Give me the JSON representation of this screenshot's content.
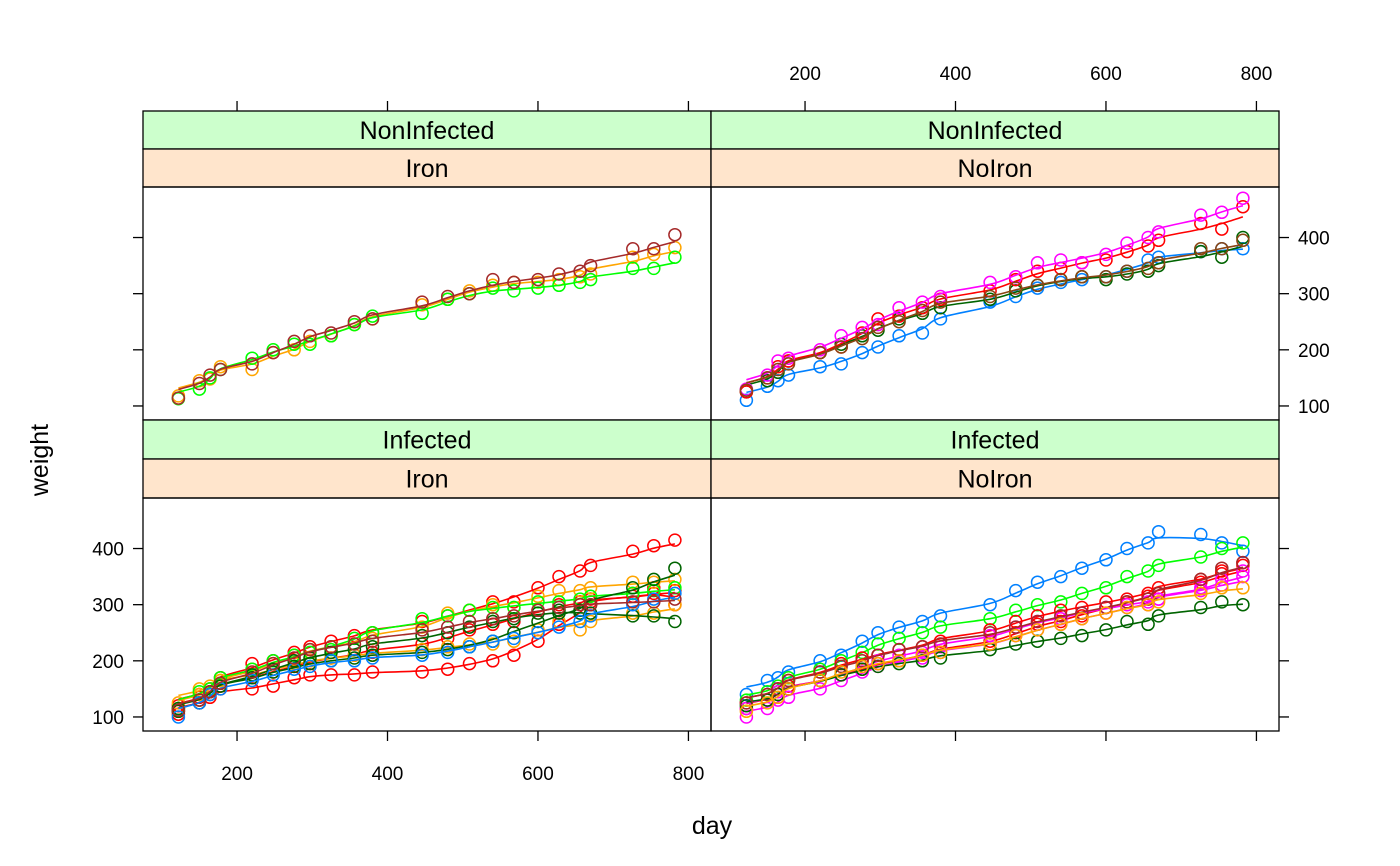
{
  "chart_data": {
    "type": "scatter",
    "layout": "lattice 2x2 with loess-smoothed lines per animal",
    "xlabel": "day",
    "ylabel": "weight",
    "xlim": [
      75,
      830
    ],
    "ylim": [
      75,
      490
    ],
    "x_ticks": [
      200,
      400,
      600,
      800
    ],
    "y_ticks": [
      100,
      200,
      300,
      400
    ],
    "x_tick_labels": [
      "200",
      "400",
      "600",
      "800"
    ],
    "y_tick_labels": [
      "100",
      "200",
      "300",
      "400"
    ],
    "days": [
      122,
      150,
      164,
      178,
      220,
      248,
      276,
      297,
      325,
      356,
      380,
      446,
      480,
      509,
      540,
      568,
      600,
      628,
      656,
      670,
      726,
      754,
      782
    ],
    "panels": [
      {
        "id": "noninfected-iron",
        "strip_top": "NonInfected",
        "strip_bottom": "Iron",
        "series": [
          {
            "color": "#FFA500",
            "values": [
              118,
              145,
              148,
              170,
              165,
              195,
              200,
              215,
              225,
              245,
              255,
              280,
              290,
              305,
              315,
              320,
              320,
              325,
              330,
              335,
              365,
              370,
              382
            ]
          },
          {
            "color": "#00FF00",
            "values": [
              113,
              130,
              150,
              165,
              185,
              200,
              210,
              210,
              225,
              245,
              260,
              265,
              290,
              300,
              310,
              305,
              310,
              315,
              320,
              325,
              345,
              345,
              365
            ]
          },
          {
            "color": "#A52A2A",
            "values": [
              114,
              140,
              155,
              165,
              175,
              195,
              215,
              225,
              230,
              250,
              255,
              285,
              295,
              300,
              325,
              320,
              325,
              335,
              340,
              350,
              380,
              380,
              405
            ]
          }
        ]
      },
      {
        "id": "noninfected-noiron",
        "strip_top": "NonInfected",
        "strip_bottom": "NoIron",
        "series": [
          {
            "color": "#0080FF",
            "values": [
              110,
              135,
              145,
              155,
              170,
              175,
              195,
              205,
              225,
              230,
              255,
              285,
              295,
              310,
              320,
              325,
              330,
              340,
              360,
              365,
              375,
              380,
              380
            ]
          },
          {
            "color": "#006400",
            "values": [
              125,
              145,
              160,
              180,
              195,
              210,
              225,
              235,
              255,
              265,
              275,
              290,
              305,
              315,
              325,
              330,
              325,
              335,
              340,
              350,
              375,
              365,
              400
            ]
          },
          {
            "color": "#FF0000",
            "values": [
              125,
              150,
              170,
              180,
              195,
              205,
              230,
              255,
              260,
              275,
              290,
              305,
              325,
              340,
              345,
              355,
              360,
              375,
              385,
              395,
              425,
              415,
              455
            ]
          },
          {
            "color": "#FF00FF",
            "values": [
              130,
              155,
              180,
              185,
              200,
              225,
              240,
              245,
              275,
              285,
              295,
              320,
              330,
              355,
              360,
              355,
              370,
              390,
              400,
              410,
              440,
              445,
              470
            ]
          },
          {
            "color": "#8B4513",
            "values": [
              128,
              150,
              165,
              175,
              195,
              205,
              220,
              240,
              250,
              270,
              285,
              295,
              310,
              315,
              325,
              330,
              330,
              340,
              345,
              355,
              380,
              380,
              395
            ]
          }
        ]
      },
      {
        "id": "infected-iron",
        "strip_top": "Infected",
        "strip_bottom": "Iron",
        "series": [
          {
            "color": "#FF0000",
            "values": [
              120,
              140,
              150,
              170,
              195,
              200,
              215,
              225,
              235,
              245,
              250,
              270,
              280,
              290,
              305,
              305,
              330,
              350,
              360,
              370,
              395,
              405,
              415
            ]
          },
          {
            "color": "#FF0000",
            "values": [
              105,
              125,
              135,
              150,
              150,
              155,
              170,
              175,
              175,
              175,
              180,
              180,
              185,
              195,
              200,
              210,
              235,
              265,
              290,
              310,
              320,
              330,
              300
            ]
          },
          {
            "color": "#FF0000",
            "values": [
              110,
              135,
              145,
              155,
              175,
              180,
              190,
              200,
              205,
              210,
              215,
              230,
              240,
              255,
              265,
              270,
              290,
              300,
              305,
              305,
              315,
              320,
              325
            ]
          },
          {
            "color": "#FFA500",
            "values": [
              125,
              150,
              155,
              165,
              175,
              185,
              195,
              200,
              205,
              210,
              210,
              220,
              225,
              230,
              230,
              235,
              255,
              270,
              255,
              270,
              285,
              285,
              300
            ]
          },
          {
            "color": "#FFA500",
            "values": [
              115,
              140,
              150,
              165,
              185,
              195,
              210,
              220,
              225,
              230,
              240,
              260,
              285,
              290,
              300,
              295,
              315,
              325,
              325,
              330,
              340,
              340,
              345
            ]
          },
          {
            "color": "#00FF00",
            "values": [
              115,
              145,
              150,
              170,
              185,
              200,
              210,
              215,
              220,
              240,
              250,
              275,
              280,
              290,
              295,
              295,
              305,
              305,
              310,
              315,
              320,
              325,
              330
            ]
          },
          {
            "color": "#006400",
            "values": [
              110,
              130,
              140,
              160,
              170,
              180,
              190,
              195,
              200,
              205,
              210,
              215,
              220,
              225,
              235,
              250,
              270,
              285,
              290,
              300,
              330,
              345,
              365
            ]
          },
          {
            "color": "#006400",
            "values": [
              115,
              125,
              145,
              155,
              175,
              185,
              200,
              205,
              215,
              220,
              225,
              245,
              250,
              260,
              270,
              275,
              285,
              290,
              285,
              285,
              280,
              280,
              270
            ]
          },
          {
            "color": "#0080FF",
            "values": [
              100,
              125,
              140,
              150,
              165,
              175,
              185,
              190,
              200,
              200,
              205,
              210,
              215,
              225,
              235,
              240,
              250,
              260,
              270,
              280,
              300,
              310,
              320
            ]
          },
          {
            "color": "#A52A2A",
            "values": [
              112,
              130,
              145,
              160,
              180,
              195,
              205,
              220,
              225,
              230,
              235,
              255,
              260,
              270,
              275,
              280,
              290,
              295,
              300,
              300,
              305,
              305,
              310
            ]
          }
        ]
      },
      {
        "id": "infected-noiron",
        "strip_top": "Infected",
        "strip_bottom": "NoIron",
        "series": [
          {
            "color": "#0080FF",
            "values": [
              140,
              165,
              170,
              180,
              200,
              210,
              235,
              250,
              260,
              270,
              280,
              300,
              325,
              340,
              350,
              365,
              380,
              400,
              410,
              430,
              425,
              410,
              395
            ]
          },
          {
            "color": "#00FF00",
            "values": [
              130,
              145,
              155,
              170,
              185,
              200,
              215,
              230,
              240,
              250,
              260,
              275,
              290,
              300,
              305,
              320,
              330,
              350,
              360,
              370,
              385,
              400,
              410
            ]
          },
          {
            "color": "#FF0000",
            "values": [
              125,
              140,
              150,
              165,
              180,
              195,
              205,
              210,
              220,
              225,
              235,
              255,
              270,
              280,
              290,
              295,
              305,
              310,
              320,
              330,
              345,
              360,
              375
            ]
          },
          {
            "color": "#FF0000",
            "values": [
              115,
              130,
              140,
              155,
              165,
              175,
              185,
              195,
              200,
              210,
              215,
              235,
              250,
              265,
              270,
              280,
              295,
              305,
              315,
              320,
              340,
              355,
              370
            ]
          },
          {
            "color": "#FF00FF",
            "values": [
              100,
              115,
              130,
              135,
              150,
              165,
              180,
              190,
              200,
              205,
              215,
              230,
              245,
              255,
              265,
              275,
              285,
              295,
              300,
              310,
              330,
              335,
              350
            ]
          },
          {
            "color": "#FF00FF",
            "values": [
              115,
              130,
              145,
              150,
              165,
              175,
              190,
              200,
              210,
              215,
              225,
              245,
              260,
              270,
              275,
              285,
              295,
              300,
              305,
              310,
              325,
              345,
              360
            ]
          },
          {
            "color": "#006400",
            "values": [
              120,
              130,
              140,
              150,
              165,
              175,
              185,
              190,
              195,
              200,
              205,
              220,
              230,
              235,
              240,
              245,
              255,
              270,
              265,
              280,
              295,
              305,
              300
            ]
          },
          {
            "color": "#A52A2A",
            "values": [
              125,
              140,
              150,
              165,
              180,
              190,
              200,
              210,
              220,
              225,
              230,
              250,
              260,
              270,
              280,
              285,
              295,
              305,
              310,
              320,
              345,
              365,
              375
            ]
          },
          {
            "color": "#FFA500",
            "values": [
              110,
              125,
              135,
              150,
              165,
              180,
              190,
              195,
              200,
              210,
              215,
              230,
              245,
              255,
              265,
              275,
              285,
              295,
              300,
              305,
              320,
              330,
              330
            ]
          }
        ]
      }
    ]
  }
}
